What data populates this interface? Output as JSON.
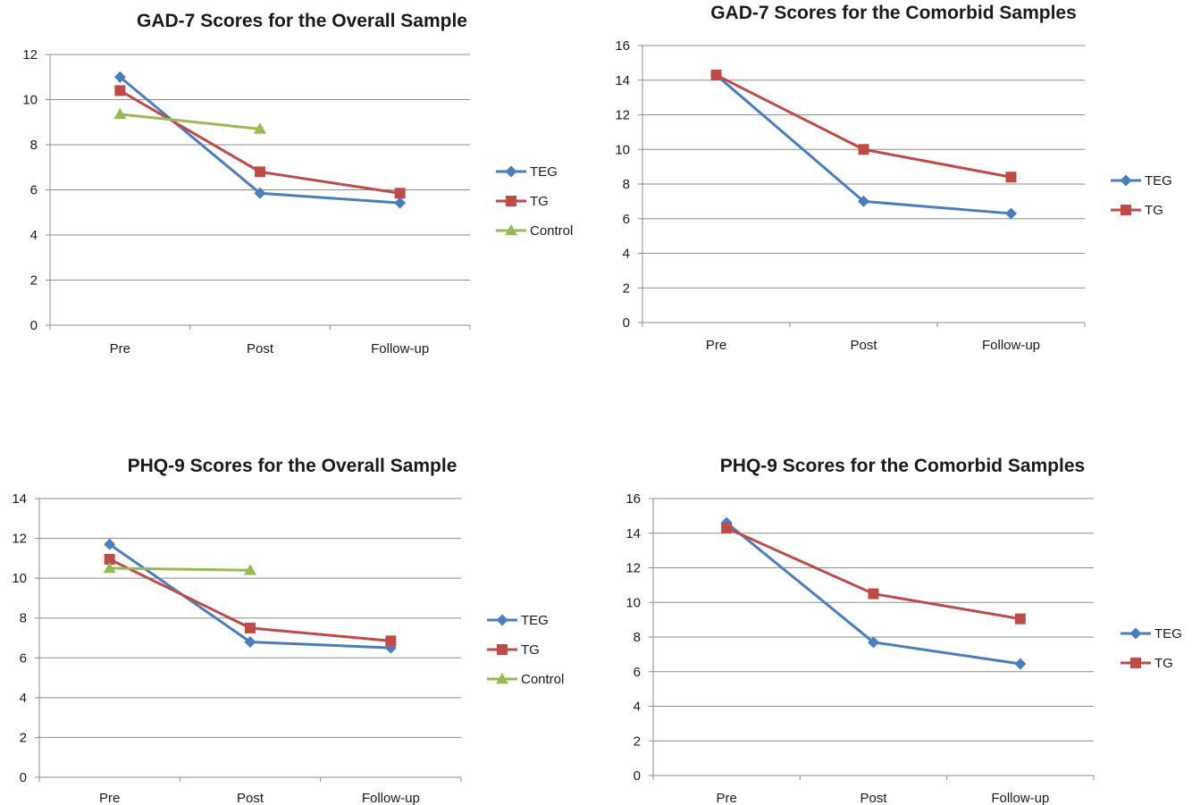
{
  "chart_data": [
    {
      "type": "line",
      "title": "GAD-7 Scores for the Overall Sample",
      "categories": [
        "Pre",
        "Post",
        "Follow-up"
      ],
      "ylim": [
        0,
        12
      ],
      "ytick_step": 2,
      "grid": true,
      "legend": "right",
      "series": [
        {
          "name": "TEG",
          "values": [
            11.0,
            5.85,
            5.42
          ],
          "color": "#4a7ebb",
          "marker": "diamond"
        },
        {
          "name": "TG",
          "values": [
            10.4,
            6.8,
            5.85
          ],
          "color": "#be4b48",
          "marker": "square"
        },
        {
          "name": "Control",
          "values": [
            9.35,
            8.7,
            null
          ],
          "color": "#98b954",
          "marker": "triangle"
        }
      ]
    },
    {
      "type": "line",
      "title": "GAD-7 Scores for the Comorbid Samples",
      "categories": [
        "Pre",
        "Post",
        "Follow-up"
      ],
      "ylim": [
        0,
        16
      ],
      "ytick_step": 2,
      "grid": true,
      "legend": "right",
      "series": [
        {
          "name": "TEG",
          "values": [
            14.3,
            7.0,
            6.3
          ],
          "color": "#4a7ebb",
          "marker": "diamond"
        },
        {
          "name": "TG",
          "values": [
            14.3,
            10.0,
            8.4
          ],
          "color": "#be4b48",
          "marker": "square"
        }
      ]
    },
    {
      "type": "line",
      "title": "PHQ-9 Scores for the Overall Sample",
      "categories": [
        "Pre",
        "Post",
        "Follow-up"
      ],
      "ylim": [
        0,
        14
      ],
      "ytick_step": 2,
      "grid": true,
      "legend": "right",
      "series": [
        {
          "name": "TEG",
          "values": [
            11.7,
            6.8,
            6.5
          ],
          "color": "#4a7ebb",
          "marker": "diamond"
        },
        {
          "name": "TG",
          "values": [
            10.95,
            7.5,
            6.85
          ],
          "color": "#be4b48",
          "marker": "square"
        },
        {
          "name": "Control",
          "values": [
            10.5,
            10.4,
            null
          ],
          "color": "#98b954",
          "marker": "triangle"
        }
      ]
    },
    {
      "type": "line",
      "title": "PHQ-9 Scores for the Comorbid Samples",
      "categories": [
        "Pre",
        "Post",
        "Follow-up"
      ],
      "ylim": [
        0,
        16
      ],
      "ytick_step": 2,
      "grid": true,
      "legend": "right",
      "series": [
        {
          "name": "TEG",
          "values": [
            14.6,
            7.7,
            6.45
          ],
          "color": "#4a7ebb",
          "marker": "diamond"
        },
        {
          "name": "TG",
          "values": [
            14.3,
            10.5,
            9.05
          ],
          "color": "#be4b48",
          "marker": "square"
        }
      ]
    }
  ]
}
